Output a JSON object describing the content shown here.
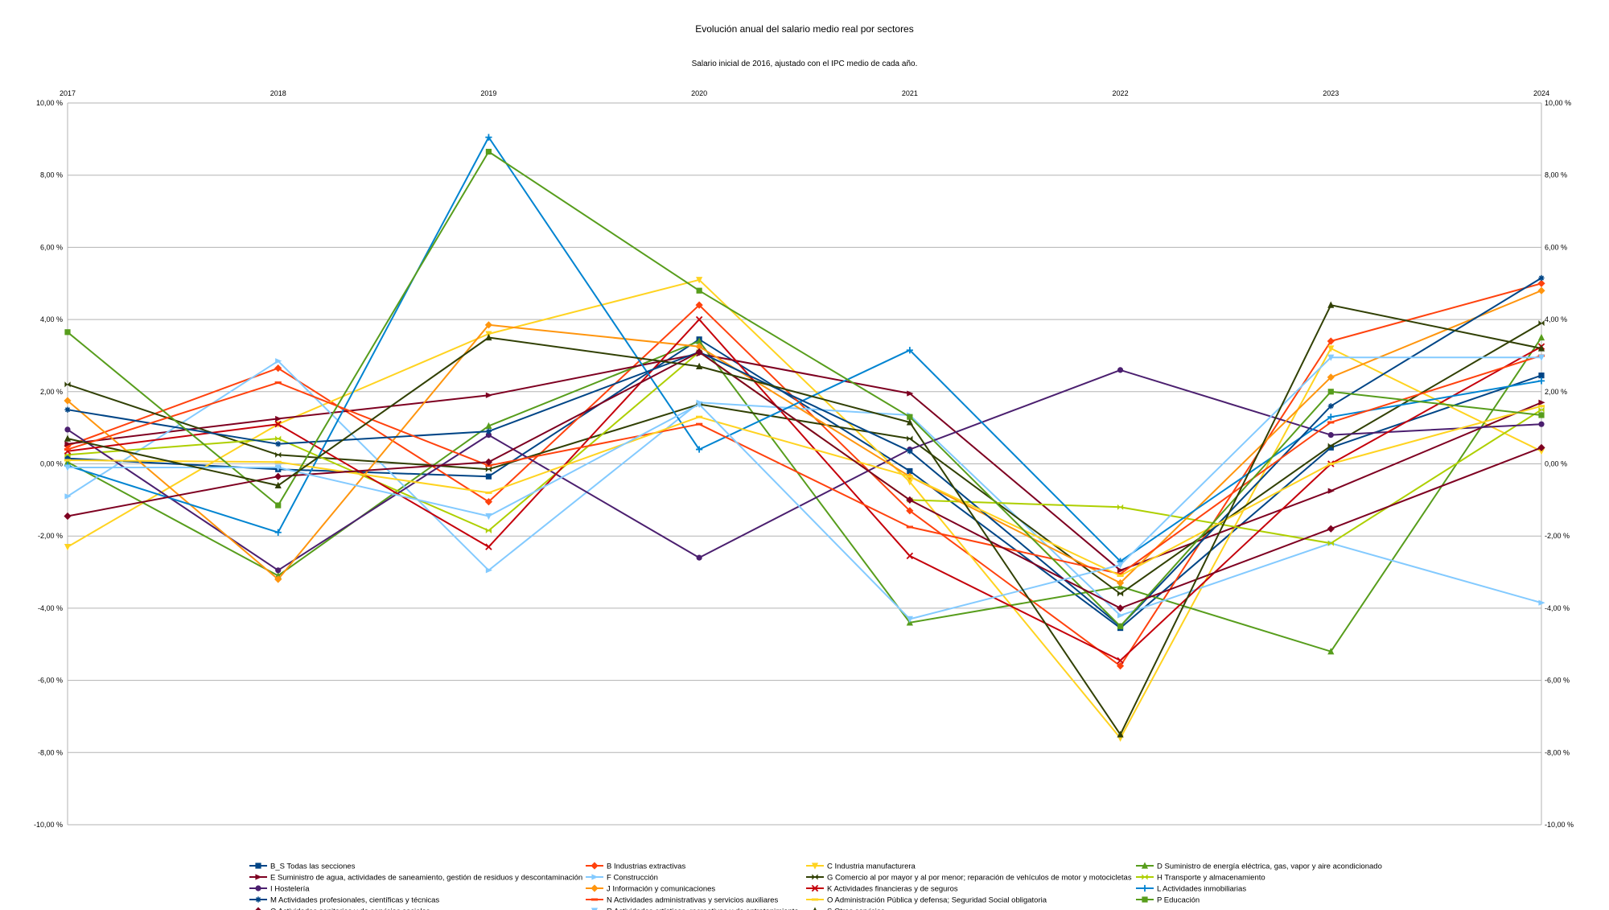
{
  "chart_data": {
    "type": "line",
    "title": "Evolución anual del salario medio real por sectores",
    "subtitle": "Salario inicial de 2016, ajustado con el IPC medio de cada año.",
    "x": [
      "2017",
      "2018",
      "2019",
      "2020",
      "2021",
      "2022",
      "2023",
      "2024"
    ],
    "ylim": [
      -10,
      10
    ],
    "yticks": [
      "10,00 %",
      "8,00 %",
      "6,00 %",
      "4,00 %",
      "2,00 %",
      "0,00 %",
      "-2,00 %",
      "-4,00 %",
      "-6,00 %",
      "-8,00 %",
      "-10,00 %"
    ],
    "grid": true,
    "legend_position": "bottom",
    "series": [
      {
        "name": "B_S Todas las secciones",
        "color": "#004586",
        "marker": "square",
        "values": [
          0.15,
          -0.15,
          -0.35,
          3.45,
          -0.2,
          -4.55,
          0.45,
          2.45
        ]
      },
      {
        "name": "B Industrias extractivas",
        "color": "#ff420e",
        "marker": "diamond",
        "values": [
          0.5,
          2.65,
          -1.05,
          4.4,
          -1.3,
          -5.6,
          3.4,
          5.0
        ]
      },
      {
        "name": "C Industria manufacturera",
        "color": "#ffd320",
        "marker": "triangle-down",
        "values": [
          -2.3,
          1.1,
          3.6,
          5.1,
          -0.5,
          -7.6,
          3.2,
          0.35
        ]
      },
      {
        "name": "D Suministro de energía eléctrica, gas, vapor y aire acondicionado",
        "color": "#579d1c",
        "marker": "triangle",
        "values": [
          0.05,
          -3.1,
          1.05,
          3.4,
          -4.4,
          -3.4,
          -5.2,
          3.5
        ]
      },
      {
        "name": "E Suministro de agua, actividades de saneamiento, gestión de residuos y descontaminación",
        "color": "#7e0021",
        "marker": "arrow",
        "values": [
          0.55,
          1.25,
          1.9,
          3.05,
          1.95,
          -2.95,
          -0.75,
          1.7
        ]
      },
      {
        "name": "F Construcción",
        "color": "#83caff",
        "marker": "arrow",
        "values": [
          -0.9,
          2.85,
          -2.95,
          1.7,
          1.35,
          -4.2,
          -2.2,
          -3.85
        ]
      },
      {
        "name": "G Comercio al por mayor y al por menor; reparación de vehículos de motor y motocicletas",
        "color": "#314004",
        "marker": "bowtie",
        "values": [
          2.2,
          0.25,
          -0.15,
          1.65,
          0.7,
          -3.6,
          0.5,
          3.9
        ]
      },
      {
        "name": "H Transporte y almacenamiento",
        "color": "#aecf00",
        "marker": "bowtie",
        "values": [
          0.25,
          0.7,
          -1.85,
          3.1,
          -1.0,
          -1.2,
          -2.2,
          1.5
        ]
      },
      {
        "name": "I Hostelería",
        "color": "#4b1f6f",
        "marker": "circle",
        "values": [
          0.95,
          -2.95,
          0.8,
          -2.6,
          0.4,
          2.6,
          0.8,
          1.1
        ]
      },
      {
        "name": "J Información y comunicaciones",
        "color": "#ff950e",
        "marker": "diamond",
        "values": [
          1.75,
          -3.2,
          3.85,
          3.25,
          -0.35,
          -3.3,
          2.4,
          4.8
        ]
      },
      {
        "name": "K Actividades financieras y de seguros",
        "color": "#c5000b",
        "marker": "x",
        "values": [
          0.35,
          1.1,
          -2.3,
          4.0,
          -2.55,
          -5.45,
          0.0,
          3.25
        ]
      },
      {
        "name": "L Actividades inmobiliarias",
        "color": "#0084d1",
        "marker": "plus",
        "values": [
          -0.05,
          -1.9,
          9.05,
          0.4,
          3.15,
          -2.7,
          1.3,
          2.3
        ]
      },
      {
        "name": "M Actividades profesionales, científicas y técnicas",
        "color": "#004586",
        "marker": "star",
        "values": [
          1.5,
          0.55,
          0.9,
          3.1,
          0.35,
          -4.5,
          1.6,
          5.15
        ]
      },
      {
        "name": "N Actividades administrativas y servicios auxiliares",
        "color": "#ff420e",
        "marker": "dash",
        "values": [
          0.4,
          2.25,
          -0.05,
          1.1,
          -1.75,
          -3.05,
          1.15,
          3.0
        ]
      },
      {
        "name": "O Administración Pública y defensa; Seguridad Social obligatoria",
        "color": "#ffd320",
        "marker": "dash",
        "values": [
          0.1,
          0.05,
          -0.8,
          1.3,
          -0.35,
          -3.1,
          0.0,
          1.6
        ]
      },
      {
        "name": "P Educación",
        "color": "#579d1c",
        "marker": "square",
        "values": [
          3.65,
          -1.15,
          8.65,
          4.8,
          1.3,
          -4.5,
          2.0,
          1.35
        ]
      },
      {
        "name": "Q Actividades sanitarias y de servicios sociales",
        "color": "#7e0021",
        "marker": "diamond",
        "values": [
          -1.45,
          -0.35,
          0.05,
          3.1,
          -1.0,
          -4.0,
          -1.8,
          0.45
        ]
      },
      {
        "name": "R Actividades artísticas, recreativas y de entretenimiento",
        "color": "#83caff",
        "marker": "triangle-down",
        "values": [
          -0.1,
          -0.1,
          -1.45,
          1.65,
          -4.3,
          -2.8,
          2.95,
          2.95
        ]
      },
      {
        "name": "S Otros servicios",
        "color": "#314004",
        "marker": "triangle",
        "values": [
          0.7,
          -0.6,
          3.5,
          2.7,
          1.15,
          -7.5,
          4.4,
          3.2
        ]
      }
    ]
  }
}
